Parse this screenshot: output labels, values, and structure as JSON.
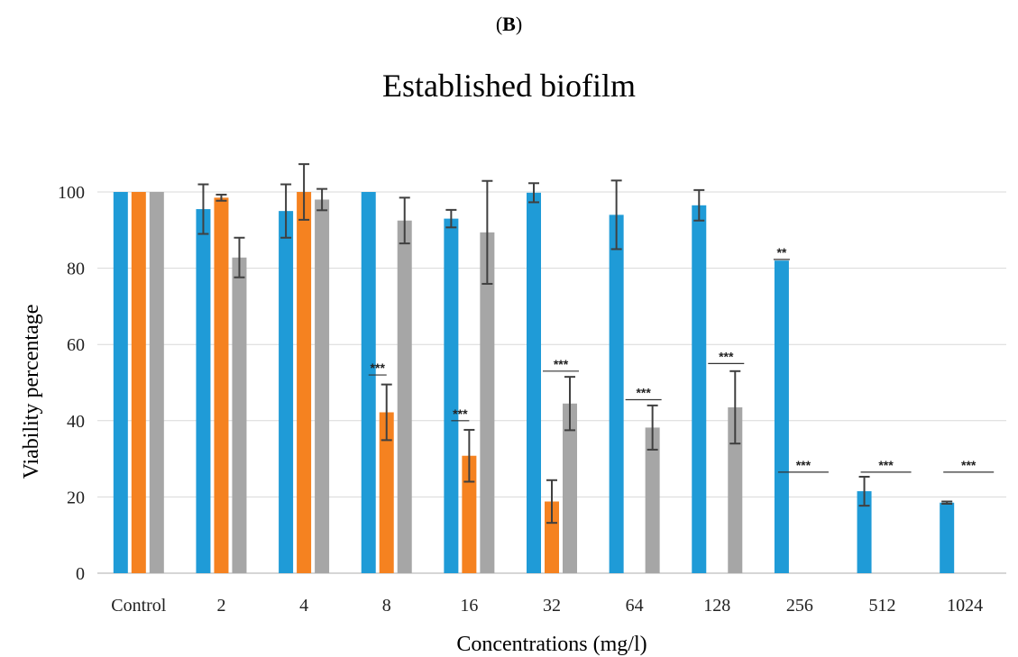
{
  "panel_label": "B",
  "chart_data": {
    "type": "bar",
    "title": "Established biofilm",
    "xlabel": "Concentrations (mg/l)",
    "ylabel": "Viability percentage",
    "ylim": [
      0,
      100
    ],
    "yticks": [
      0,
      20,
      40,
      60,
      80,
      100
    ],
    "grid": true,
    "legend": "none",
    "categories": [
      "Control",
      "2",
      "4",
      "8",
      "16",
      "32",
      "64",
      "128",
      "256",
      "512",
      "1024"
    ],
    "series": [
      {
        "color": "#1f9bd7",
        "values": [
          100,
          95.5,
          95,
          100,
          93,
          99.8,
          94,
          96.5,
          82,
          21.5,
          18.5
        ],
        "errors": [
          0,
          6.5,
          7,
          0,
          2.3,
          2.5,
          9,
          4,
          0,
          3.8,
          0.3
        ]
      },
      {
        "color": "#f58220",
        "values": [
          100,
          98.5,
          100,
          42.2,
          30.8,
          18.8,
          null,
          null,
          null,
          null,
          null
        ],
        "errors": [
          0,
          0.8,
          7.3,
          7.3,
          6.8,
          5.6,
          null,
          null,
          null,
          null,
          null
        ]
      },
      {
        "color": "#a6a6a6",
        "values": [
          100,
          82.8,
          98,
          92.5,
          89.4,
          44.5,
          38.2,
          43.5,
          null,
          null,
          null
        ],
        "errors": [
          0,
          5.2,
          2.8,
          6,
          13.5,
          7,
          5.8,
          9.5,
          null,
          null,
          null
        ]
      }
    ],
    "annotations": [
      {
        "category": "8",
        "text": "***",
        "y": 52
      },
      {
        "category": "16",
        "text": "***",
        "y": 40
      },
      {
        "category": "32",
        "text": "***",
        "y": 53
      },
      {
        "category": "64",
        "text": "***",
        "y": 45.5
      },
      {
        "category": "128",
        "text": "***",
        "y": 55
      },
      {
        "category": "256",
        "text": "**",
        "y": 82.3
      },
      {
        "category": "256",
        "text": "***",
        "y": 26.5
      },
      {
        "category": "512",
        "text": "***",
        "y": 26.5
      },
      {
        "category": "1024",
        "text": "***",
        "y": 26.5
      }
    ]
  }
}
